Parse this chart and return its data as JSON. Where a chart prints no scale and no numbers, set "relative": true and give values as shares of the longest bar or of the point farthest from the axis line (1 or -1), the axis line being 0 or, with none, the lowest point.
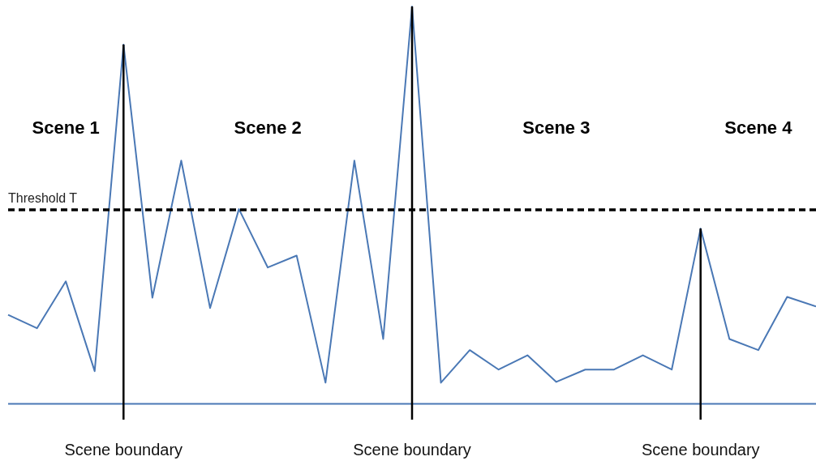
{
  "chart_data": {
    "type": "line",
    "relative": true,
    "categories": [
      null,
      null,
      null,
      null,
      null,
      null,
      null,
      null,
      null,
      null,
      null,
      null,
      null,
      null,
      null,
      null,
      null,
      null,
      null,
      null,
      null,
      null,
      null,
      null,
      null,
      null,
      null,
      null,
      null
    ],
    "series": [
      {
        "color": "#4a78b5",
        "values": [
          0.224,
          0.19,
          0.308,
          0.082,
          0.904,
          0.267,
          0.612,
          0.241,
          0.49,
          0.343,
          0.373,
          0.053,
          0.612,
          0.163,
          1.0,
          0.053,
          0.135,
          0.086,
          0.122,
          0.055,
          0.086,
          0.086,
          0.122,
          0.086,
          0.441,
          0.163,
          0.135,
          0.269,
          0.245
        ]
      }
    ],
    "ref_lines": [
      {
        "axis": "y",
        "value": 0.488,
        "label": "Threshold T",
        "color": "#000000",
        "line_style": "dashed"
      }
    ],
    "annotations": [
      "Scene 1",
      "Scene boundary",
      "Scene 2",
      "Scene boundary",
      "Scene 3",
      "Scene boundary",
      "Scene 4"
    ],
    "grid": false,
    "tick_labels": false,
    "line_style": "solid",
    "marker": "none"
  }
}
